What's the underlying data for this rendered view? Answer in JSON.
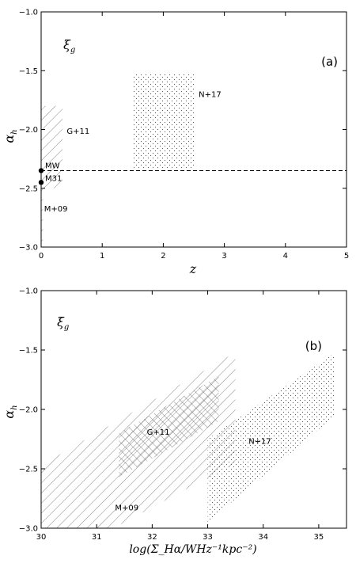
{
  "chart_data": [
    {
      "type": "area",
      "panel_tag": "(a)",
      "corner_label": "ξ",
      "corner_label_sub": "g",
      "xlabel": "z",
      "ylabel": "α",
      "ylabel_sub": "h",
      "xlim": [
        0,
        5
      ],
      "ylim": [
        -3.0,
        -1.0
      ],
      "xticks": [
        "0",
        "1",
        "2",
        "3",
        "4",
        "5"
      ],
      "yticks": [
        "-1.0",
        "-1.5",
        "-2.0",
        "-2.5",
        "-3.0"
      ],
      "regions": [
        {
          "name": "G+11",
          "pattern": "diagonal",
          "polygon": [
            [
              0,
              -1.8
            ],
            [
              0.35,
              -1.8
            ],
            [
              0.35,
              -2.5
            ],
            [
              0,
              -2.5
            ]
          ]
        },
        {
          "name": "N+17",
          "pattern": "dots",
          "polygon": [
            [
              1.5,
              -1.52
            ],
            [
              2.5,
              -1.52
            ],
            [
              2.5,
              -2.33
            ],
            [
              1.5,
              -2.33
            ]
          ]
        },
        {
          "name": "M+09",
          "pattern": "diagonal",
          "polygon": [
            [
              0,
              -2.45
            ],
            [
              0.03,
              -2.45
            ],
            [
              0.03,
              -3.0
            ],
            [
              0,
              -3.0
            ]
          ]
        }
      ],
      "reference_line": {
        "y": -2.35,
        "style": "dashed"
      },
      "points": [
        {
          "name": "MW",
          "x": 0,
          "y": -2.35
        },
        {
          "name": "M31",
          "x": 0,
          "y": -2.45
        }
      ]
    },
    {
      "type": "area",
      "panel_tag": "(b)",
      "corner_label": "ξ",
      "corner_label_sub": "g",
      "xlabel": "log(Σ_Hα/WHz⁻¹kpc⁻²)",
      "ylabel": "α",
      "ylabel_sub": "h",
      "xlim": [
        30,
        35.5
      ],
      "ylim": [
        -3.0,
        -1.0
      ],
      "xticks": [
        "30",
        "31",
        "32",
        "33",
        "34",
        "35"
      ],
      "yticks": [
        "-1.0",
        "-1.5",
        "-2.0",
        "-2.5",
        "-3.0"
      ],
      "regions": [
        {
          "name": "M+09",
          "pattern": "diagonal",
          "polygon": [
            [
              30,
              -2.47
            ],
            [
              33.5,
              -1.52
            ],
            [
              33.5,
              -2.45
            ],
            [
              31.3,
              -3.0
            ],
            [
              30,
              -3.0
            ]
          ]
        },
        {
          "name": "G+11",
          "pattern": "cross-hatch",
          "polygon": [
            [
              31.4,
              -2.2
            ],
            [
              33.2,
              -1.72
            ],
            [
              33.2,
              -2.1
            ],
            [
              31.4,
              -2.57
            ]
          ]
        },
        {
          "name": "N+17",
          "pattern": "dots",
          "polygon": [
            [
              33.0,
              -2.25
            ],
            [
              35.3,
              -1.52
            ],
            [
              35.3,
              -2.05
            ],
            [
              33.0,
              -2.95
            ]
          ]
        }
      ]
    }
  ]
}
